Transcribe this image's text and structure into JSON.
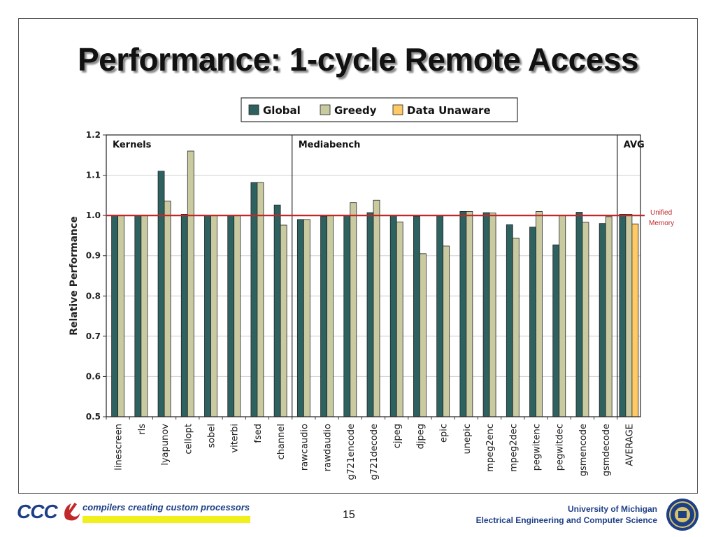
{
  "slide": {
    "title": "Performance: 1-cycle Remote Access",
    "page_number": "15",
    "footer_logo": "CCC",
    "footer_tagline": "compilers creating custom processors",
    "footer_university": "University of Michigan",
    "footer_department": "Electrical Engineering and Computer Science"
  },
  "chart_data": {
    "type": "bar",
    "ylabel": "Relative Performance",
    "xlabel": "",
    "ylim": [
      0.5,
      1.2
    ],
    "yticks": [
      "0.5",
      "0.6",
      "0.7",
      "0.8",
      "0.9",
      "1.0",
      "1.1",
      "1.2"
    ],
    "grid": true,
    "legend_position": "top-center",
    "categories": [
      "linescreen",
      "rls",
      "lyapunov",
      "cellopt",
      "sobel",
      "viterbi",
      "fsed",
      "channel",
      "rawcaudio",
      "rawdaudio",
      "g721encode",
      "g721decode",
      "cjpeg",
      "djpeg",
      "epic",
      "unepic",
      "mpeg2enc",
      "mpeg2dec",
      "pegwitenc",
      "pegwitdec",
      "gsmencode",
      "gsmdecode",
      "AVERAGE"
    ],
    "series": [
      {
        "name": "Global",
        "color": "#2e6260",
        "values": [
          1.0,
          1.0,
          1.11,
          1.003,
          1.0,
          1.0,
          1.082,
          1.026,
          0.99,
          0.998,
          1.0,
          1.007,
          1.0,
          0.998,
          0.999,
          1.01,
          1.007,
          0.977,
          0.971,
          0.927,
          1.008,
          0.98,
          1.003
        ]
      },
      {
        "name": "Greedy",
        "color": "#c9caa0",
        "values": [
          1.0,
          1.0,
          1.036,
          1.16,
          1.0,
          1.0,
          1.082,
          0.976,
          0.99,
          1.0,
          1.032,
          1.038,
          0.984,
          0.905,
          0.924,
          1.01,
          1.006,
          0.944,
          1.01,
          1.0,
          0.983,
          0.997,
          1.003
        ]
      },
      {
        "name": "Data Unaware",
        "color": "#ffc966",
        "values": [
          null,
          null,
          null,
          null,
          null,
          null,
          null,
          null,
          null,
          null,
          null,
          null,
          null,
          null,
          null,
          null,
          null,
          null,
          null,
          null,
          null,
          null,
          0.979
        ]
      }
    ],
    "groups": [
      {
        "label": "Kernels",
        "start": 0,
        "end": 7
      },
      {
        "label": "Mediabench",
        "start": 8,
        "end": 21
      },
      {
        "label": "AVG",
        "start": 22,
        "end": 22
      }
    ],
    "reference_line": {
      "value": 1.0,
      "label_line1": "Unified",
      "label_line2": "Memory",
      "color": "#c0282a"
    }
  }
}
